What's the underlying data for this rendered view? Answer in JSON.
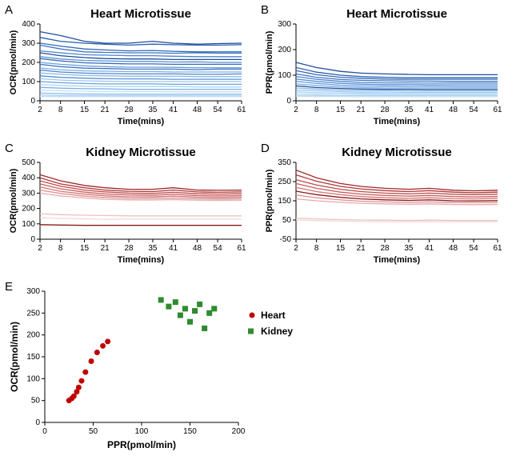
{
  "panels": {
    "A": {
      "letter": "A",
      "title": "Heart Microtissue",
      "xlabel": "Time(mins)",
      "ylabel": "OCR(pmol/min)",
      "title_fontsize": 15,
      "label_fontsize": 11,
      "tick_fontsize": 10,
      "xticks": [
        2,
        8,
        15,
        21,
        28,
        35,
        41,
        48,
        54,
        61
      ],
      "yticks": [
        0,
        100,
        200,
        300,
        400
      ],
      "xlim": [
        2,
        61
      ],
      "ylim": [
        0,
        400
      ],
      "colors": [
        "#1f4e9c",
        "#2a5db0",
        "#3468b8",
        "#3f76c3",
        "#4a83cc",
        "#5a92d4",
        "#6ba0dc",
        "#7caee3",
        "#8cbbe9",
        "#9cc7ee",
        "#aed3f2",
        "#c0dff6"
      ],
      "background_color": "#ffffff",
      "line_width": 1.3,
      "series": [
        {
          "c": 0,
          "y": [
            360,
            340,
            310,
            300,
            300,
            310,
            300,
            295,
            298,
            300
          ]
        },
        {
          "c": 1,
          "y": [
            330,
            310,
            300,
            295,
            290,
            295,
            292,
            290,
            290,
            292
          ]
        },
        {
          "c": 2,
          "y": [
            300,
            285,
            270,
            265,
            260,
            262,
            258,
            255,
            255,
            255
          ]
        },
        {
          "c": 3,
          "y": [
            290,
            270,
            255,
            252,
            250,
            250,
            248,
            250,
            248,
            248
          ]
        },
        {
          "c": 4,
          "y": [
            260,
            250,
            240,
            238,
            235,
            235,
            232,
            230,
            230,
            230
          ]
        },
        {
          "c": 0,
          "y": [
            250,
            235,
            225,
            220,
            218,
            218,
            215,
            215,
            215,
            215
          ]
        },
        {
          "c": 5,
          "y": [
            230,
            218,
            210,
            208,
            205,
            205,
            202,
            203,
            200,
            200
          ]
        },
        {
          "c": 2,
          "y": [
            220,
            208,
            198,
            195,
            192,
            192,
            190,
            190,
            190,
            190
          ]
        },
        {
          "c": 6,
          "y": [
            200,
            190,
            182,
            178,
            175,
            175,
            174,
            172,
            172,
            172
          ]
        },
        {
          "c": 3,
          "y": [
            190,
            178,
            170,
            168,
            165,
            165,
            165,
            162,
            165,
            165
          ]
        },
        {
          "c": 7,
          "y": [
            170,
            162,
            156,
            154,
            152,
            152,
            150,
            150,
            150,
            150
          ]
        },
        {
          "c": 4,
          "y": [
            160,
            150,
            144,
            142,
            140,
            140,
            140,
            138,
            138,
            140
          ]
        },
        {
          "c": 8,
          "y": [
            145,
            138,
            132,
            130,
            128,
            128,
            128,
            126,
            126,
            126
          ]
        },
        {
          "c": 5,
          "y": [
            130,
            122,
            118,
            115,
            114,
            114,
            112,
            112,
            112,
            112
          ]
        },
        {
          "c": 9,
          "y": [
            115,
            108,
            104,
            102,
            100,
            100,
            100,
            100,
            100,
            100
          ]
        },
        {
          "c": 6,
          "y": [
            100,
            94,
            90,
            88,
            88,
            88,
            86,
            86,
            86,
            86
          ]
        },
        {
          "c": 10,
          "y": [
            85,
            80,
            76,
            75,
            74,
            74,
            74,
            72,
            72,
            72
          ]
        },
        {
          "c": 7,
          "y": [
            70,
            66,
            63,
            62,
            60,
            60,
            60,
            60,
            60,
            60
          ]
        },
        {
          "c": 11,
          "y": [
            55,
            52,
            50,
            48,
            48,
            48,
            47,
            47,
            47,
            47
          ]
        },
        {
          "c": 8,
          "y": [
            40,
            38,
            36,
            35,
            35,
            35,
            35,
            35,
            35,
            35
          ]
        },
        {
          "c": 10,
          "y": [
            30,
            28,
            28,
            27,
            27,
            27,
            27,
            27,
            27,
            27
          ]
        },
        {
          "c": 11,
          "y": [
            22,
            22,
            22,
            22,
            22,
            22,
            22,
            22,
            22,
            22
          ]
        }
      ]
    },
    "B": {
      "letter": "B",
      "title": "Heart Microtissue",
      "xlabel": "Time(mins)",
      "ylabel": "PPR(pmol/min)",
      "title_fontsize": 15,
      "label_fontsize": 11,
      "tick_fontsize": 10,
      "xticks": [
        2,
        8,
        15,
        21,
        28,
        35,
        41,
        48,
        54,
        61
      ],
      "yticks": [
        0,
        100,
        200,
        300
      ],
      "xlim": [
        2,
        61
      ],
      "ylim": [
        0,
        300
      ],
      "colors": [
        "#1f4e9c",
        "#2a5db0",
        "#3468b8",
        "#3f76c3",
        "#4a83cc",
        "#5a92d4",
        "#6ba0dc",
        "#7caee3",
        "#8cbbe9",
        "#9cc7ee",
        "#aed3f2",
        "#c0dff6"
      ],
      "background_color": "#ffffff",
      "line_width": 1.3,
      "series": [
        {
          "c": 0,
          "y": [
            150,
            130,
            115,
            108,
            105,
            103,
            102,
            102,
            102,
            102
          ]
        },
        {
          "c": 1,
          "y": [
            130,
            112,
            100,
            95,
            92,
            90,
            90,
            90,
            90,
            90
          ]
        },
        {
          "c": 2,
          "y": [
            118,
            102,
            92,
            88,
            85,
            84,
            84,
            84,
            84,
            84
          ]
        },
        {
          "c": 3,
          "y": [
            105,
            92,
            83,
            80,
            78,
            77,
            77,
            76,
            76,
            76
          ]
        },
        {
          "c": 4,
          "y": [
            95,
            84,
            76,
            72,
            70,
            70,
            69,
            69,
            69,
            69
          ]
        },
        {
          "c": 5,
          "y": [
            85,
            76,
            68,
            65,
            63,
            63,
            62,
            62,
            62,
            62
          ]
        },
        {
          "c": 6,
          "y": [
            76,
            68,
            61,
            58,
            57,
            56,
            56,
            55,
            55,
            55
          ]
        },
        {
          "c": 7,
          "y": [
            66,
            60,
            54,
            52,
            50,
            50,
            50,
            50,
            50,
            50
          ]
        },
        {
          "c": 0,
          "y": [
            58,
            52,
            48,
            46,
            45,
            45,
            44,
            44,
            44,
            44
          ]
        },
        {
          "c": 8,
          "y": [
            50,
            46,
            42,
            40,
            40,
            39,
            39,
            39,
            39,
            39
          ]
        },
        {
          "c": 9,
          "y": [
            42,
            39,
            36,
            34,
            34,
            33,
            33,
            33,
            33,
            33
          ]
        },
        {
          "c": 10,
          "y": [
            35,
            32,
            30,
            29,
            28,
            28,
            28,
            28,
            28,
            28
          ]
        },
        {
          "c": 11,
          "y": [
            28,
            26,
            25,
            24,
            24,
            24,
            24,
            24,
            24,
            24
          ]
        },
        {
          "c": 10,
          "y": [
            22,
            21,
            20,
            20,
            20,
            20,
            20,
            20,
            20,
            20
          ]
        },
        {
          "c": 11,
          "y": [
            18,
            17,
            17,
            16,
            16,
            16,
            16,
            16,
            16,
            16
          ]
        }
      ]
    },
    "C": {
      "letter": "C",
      "title": "Kidney Microtissue",
      "xlabel": "Time(mins)",
      "ylabel": "OCR(pmol/min)",
      "title_fontsize": 15,
      "label_fontsize": 11,
      "tick_fontsize": 10,
      "xticks": [
        2,
        8,
        15,
        21,
        28,
        35,
        41,
        48,
        54,
        61
      ],
      "yticks": [
        0,
        100,
        200,
        300,
        400,
        500
      ],
      "xlim": [
        2,
        61
      ],
      "ylim": [
        0,
        500
      ],
      "colors": [
        "#8b1a1a",
        "#a02828",
        "#b03838",
        "#be4a4a",
        "#c95f5f",
        "#d47777",
        "#dd9090",
        "#e5aaaa",
        "#ecc2c2",
        "#f2d8d8"
      ],
      "background_color": "#ffffff",
      "line_width": 1.3,
      "series": [
        {
          "c": 1,
          "y": [
            420,
            380,
            350,
            335,
            325,
            325,
            335,
            320,
            318,
            320
          ]
        },
        {
          "c": 2,
          "y": [
            400,
            360,
            335,
            320,
            312,
            310,
            320,
            308,
            305,
            308
          ]
        },
        {
          "c": 3,
          "y": [
            380,
            345,
            320,
            308,
            300,
            298,
            305,
            296,
            294,
            296
          ]
        },
        {
          "c": 4,
          "y": [
            360,
            328,
            306,
            295,
            288,
            286,
            292,
            284,
            282,
            284
          ]
        },
        {
          "c": 5,
          "y": [
            340,
            312,
            293,
            283,
            276,
            275,
            280,
            274,
            272,
            274
          ]
        },
        {
          "c": 6,
          "y": [
            320,
            298,
            280,
            272,
            266,
            265,
            268,
            264,
            262,
            264
          ]
        },
        {
          "c": 7,
          "y": [
            300,
            282,
            268,
            260,
            256,
            255,
            258,
            254,
            253,
            254
          ]
        },
        {
          "c": 8,
          "y": [
            165,
            160,
            156,
            154,
            152,
            152,
            152,
            152,
            152,
            152
          ]
        },
        {
          "c": 9,
          "y": [
            140,
            136,
            132,
            130,
            130,
            130,
            130,
            130,
            130,
            130
          ]
        },
        {
          "c": 0,
          "y": [
            95,
            92,
            90,
            90,
            90,
            90,
            90,
            90,
            90,
            90
          ]
        }
      ]
    },
    "D": {
      "letter": "D",
      "title": "Kidney Microtissue",
      "xlabel": "Time(mins)",
      "ylabel": "PPR(pmol/min)",
      "title_fontsize": 15,
      "label_fontsize": 11,
      "tick_fontsize": 10,
      "xticks": [
        2,
        8,
        15,
        21,
        28,
        35,
        41,
        48,
        54,
        61
      ],
      "yticks": [
        -50,
        50,
        150,
        250,
        350
      ],
      "xlim": [
        2,
        61
      ],
      "ylim": [
        -50,
        350
      ],
      "colors": [
        "#8b1a1a",
        "#a02828",
        "#b03838",
        "#be4a4a",
        "#c95f5f",
        "#d47777",
        "#dd9090",
        "#e5aaaa",
        "#ecc2c2",
        "#f2d8d8"
      ],
      "background_color": "#ffffff",
      "line_width": 1.3,
      "series": [
        {
          "c": 1,
          "y": [
            310,
            270,
            240,
            225,
            215,
            210,
            215,
            205,
            202,
            205
          ]
        },
        {
          "c": 2,
          "y": [
            285,
            252,
            225,
            212,
            203,
            198,
            203,
            195,
            192,
            195
          ]
        },
        {
          "c": 3,
          "y": [
            260,
            232,
            210,
            198,
            190,
            186,
            190,
            184,
            182,
            184
          ]
        },
        {
          "c": 4,
          "y": [
            240,
            215,
            195,
            185,
            178,
            174,
            178,
            172,
            170,
            172
          ]
        },
        {
          "c": 5,
          "y": [
            220,
            198,
            182,
            172,
            166,
            163,
            166,
            161,
            160,
            162
          ]
        },
        {
          "c": 0,
          "y": [
            200,
            182,
            168,
            160,
            155,
            152,
            155,
            150,
            149,
            151
          ]
        },
        {
          "c": 6,
          "y": [
            180,
            166,
            155,
            148,
            144,
            142,
            144,
            141,
            140,
            141
          ]
        },
        {
          "c": 7,
          "y": [
            160,
            150,
            142,
            137,
            134,
            132,
            134,
            131,
            130,
            131
          ]
        },
        {
          "c": 8,
          "y": [
            60,
            56,
            52,
            50,
            49,
            48,
            49,
            48,
            48,
            48
          ]
        },
        {
          "c": 9,
          "y": [
            50,
            47,
            44,
            42,
            41,
            41,
            41,
            41,
            41,
            41
          ]
        }
      ]
    },
    "E": {
      "letter": "E",
      "xlabel": "PPR(pmol/min)",
      "ylabel": "OCR(pmol/min)",
      "label_fontsize": 12,
      "tick_fontsize": 10,
      "xticks": [
        0,
        50,
        100,
        150,
        200
      ],
      "yticks": [
        0,
        50,
        100,
        150,
        200,
        250,
        300
      ],
      "xlim": [
        0,
        200
      ],
      "ylim": [
        0,
        300
      ],
      "background_color": "#ffffff",
      "marker_size": 7,
      "legend": [
        {
          "label": "Heart",
          "color": "#c00000",
          "shape": "circle"
        },
        {
          "label": "Kidney",
          "color": "#2e8b2e",
          "shape": "square"
        }
      ],
      "heart": {
        "color": "#c00000",
        "points": [
          [
            25,
            50
          ],
          [
            28,
            55
          ],
          [
            30,
            60
          ],
          [
            33,
            70
          ],
          [
            35,
            80
          ],
          [
            38,
            95
          ],
          [
            42,
            115
          ],
          [
            48,
            140
          ],
          [
            54,
            160
          ],
          [
            60,
            175
          ],
          [
            65,
            185
          ]
        ]
      },
      "kidney": {
        "color": "#2e8b2e",
        "points": [
          [
            120,
            280
          ],
          [
            128,
            265
          ],
          [
            135,
            275
          ],
          [
            140,
            245
          ],
          [
            145,
            260
          ],
          [
            150,
            230
          ],
          [
            155,
            255
          ],
          [
            160,
            270
          ],
          [
            165,
            215
          ],
          [
            170,
            250
          ],
          [
            175,
            260
          ]
        ]
      }
    }
  }
}
